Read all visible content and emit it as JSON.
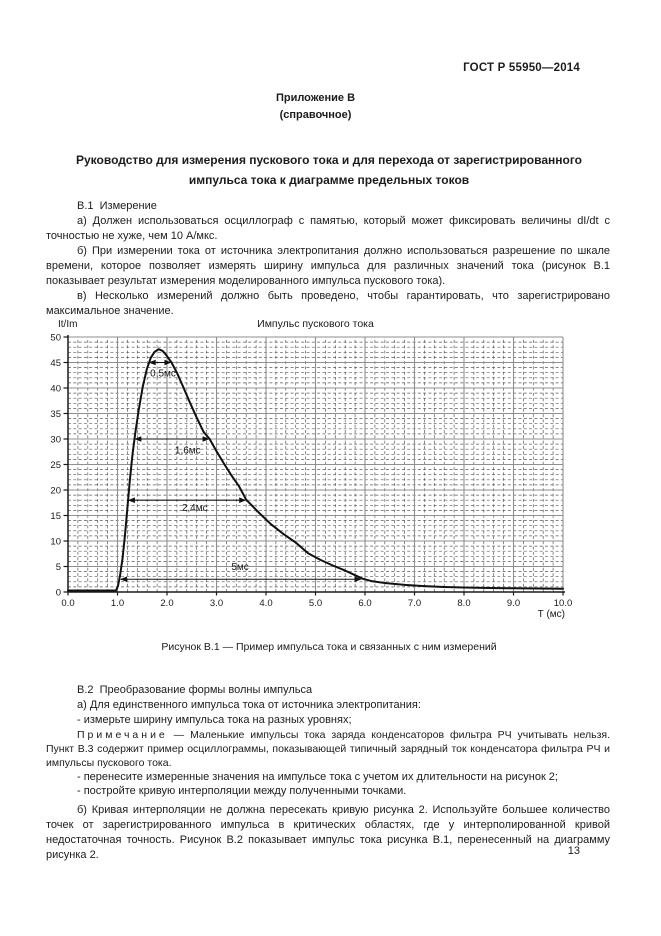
{
  "page": {
    "header": "ГОСТ Р 55950—2014",
    "appendix_label": "Приложение В",
    "appendix_type": "(справочное)",
    "title_lines": [
      "Руководство для измерения пускового тока и для перехода от зарегистрированного",
      "импульса тока к диаграмме предельных токов"
    ],
    "page_number": "13"
  },
  "section_b1": {
    "heading": "В.1  Измерение",
    "para_a": "а) Должен использоваться осциллограф с памятью, который может фиксировать величины dI/dt с точностью не хуже, чем 10 А/мкс.",
    "para_b": "б) При измерении тока от источника электропитания должно использоваться разрешение по шкале времени, которое позволяет измерять ширину импульса для различных значений тока (рисунок В.1 показывает результат измерения моделированного импульса пускового тока).",
    "para_v": "в) Несколько измерений должно быть проведено, чтобы гарантировать, что зарегистрировано максимальное значение."
  },
  "figure": {
    "caption": "Рисунок В.1 — Пример импульса тока и связанных с ним измерений"
  },
  "section_b2": {
    "heading": "В.2  Преобразование формы волны импульса",
    "para_a": "а) Для единственного импульса тока от источника электропитания:",
    "item_1": "- измерьте ширину импульса тока на разных уровнях;",
    "note_label": "Примечание",
    "note_text": " — Маленькие импульсы тока заряда конденсаторов фильтра РЧ учитывать нельзя. Пункт В.3 содержит пример осциллограммы, показывающей типичный зарядный ток конденсатора фильтра РЧ и импульсы пускового тока.",
    "item_2": "- перенесите измеренные значения на импульсе тока с учетом их длительности на рисунок 2;",
    "item_3": "- постройте кривую интерполяции между полученными точками.",
    "para_b": "б) Кривая интерполяции не должна пересекать кривую рисунка 2. Используйте большее количество точек от зарегистрированного импульса в критических областях, где у интерполированной кривой недостаточная точность. Рисунок В.2 показывает импульс тока рисунка В.1, перенесенный на диаграмму рисунка 2."
  },
  "chart_data": {
    "type": "line",
    "title": "Импульс пускового тока",
    "ylabel": "It/Im",
    "xlabel": "Т (мс)",
    "xlim": [
      0,
      10
    ],
    "ylim": [
      0,
      50
    ],
    "x_tick_labels": [
      "0.0",
      "1.0",
      "2.0",
      "3.0",
      "4.0",
      "5.0",
      "6.0",
      "7.0",
      "8.0",
      "9.0",
      "10.0"
    ],
    "y_ticks": [
      0,
      5,
      10,
      15,
      20,
      25,
      30,
      35,
      40,
      45,
      50
    ],
    "grid": {
      "minor_x_step": 0.2,
      "minor_y_step": 1,
      "major_x_step": 1,
      "major_y_step": 5,
      "minor_style": "dashed",
      "major_style": "solid"
    },
    "curve": [
      [
        0,
        0.3
      ],
      [
        0.6,
        0.3
      ],
      [
        0.97,
        0.3
      ],
      [
        1.01,
        1.2
      ],
      [
        1.05,
        3.2
      ],
      [
        1.1,
        6.5
      ],
      [
        1.15,
        11
      ],
      [
        1.2,
        16.5
      ],
      [
        1.25,
        22
      ],
      [
        1.3,
        26.8
      ],
      [
        1.36,
        31.2
      ],
      [
        1.43,
        35.8
      ],
      [
        1.51,
        40.2
      ],
      [
        1.59,
        43.6
      ],
      [
        1.67,
        45.9
      ],
      [
        1.75,
        47.1
      ],
      [
        1.83,
        47.6
      ],
      [
        1.91,
        47.3
      ],
      [
        1.99,
        46.4
      ],
      [
        2.09,
        45
      ],
      [
        2.2,
        43
      ],
      [
        2.32,
        40.4
      ],
      [
        2.46,
        37.2
      ],
      [
        2.6,
        34.2
      ],
      [
        2.74,
        31.4
      ],
      [
        2.86,
        30
      ],
      [
        3.0,
        27.6
      ],
      [
        3.15,
        25.2
      ],
      [
        3.3,
        22.9
      ],
      [
        3.45,
        20.8
      ],
      [
        3.6,
        18.1
      ],
      [
        3.85,
        15.6
      ],
      [
        4.1,
        13.3
      ],
      [
        4.35,
        11.4
      ],
      [
        4.6,
        9.7
      ],
      [
        4.85,
        7.6
      ],
      [
        5.1,
        6.3
      ],
      [
        5.35,
        5.2
      ],
      [
        5.6,
        4.2
      ],
      [
        5.8,
        3.3
      ],
      [
        5.95,
        2.6
      ],
      [
        6.15,
        2.1
      ],
      [
        6.45,
        1.7
      ],
      [
        6.8,
        1.4
      ],
      [
        7.2,
        1.15
      ],
      [
        7.6,
        0.98
      ],
      [
        8.0,
        0.88
      ],
      [
        8.5,
        0.78
      ],
      [
        9.0,
        0.72
      ],
      [
        9.5,
        0.68
      ],
      [
        10,
        0.65
      ]
    ],
    "measurements": [
      {
        "label": "0,5мс",
        "level": 45,
        "x1": 1.63,
        "x2": 2.09,
        "label_x": 1.66,
        "label_y": 42.3
      },
      {
        "label": "1,6мс",
        "level": 30,
        "x1": 1.34,
        "x2": 2.86,
        "label_x": 2.16,
        "label_y": 27.2
      },
      {
        "label": "2,4мс",
        "level": 18,
        "x1": 1.21,
        "x2": 3.6,
        "label_x": 2.3,
        "label_y": 15.9
      },
      {
        "label": "5мс",
        "level": 2.5,
        "x1": 1.05,
        "x2": 5.93,
        "label_x": 3.3,
        "label_y": 4.3
      }
    ],
    "colors": {
      "curve": "#111111",
      "axis": "#1a1a1a",
      "major_grid": "#8f8f8f",
      "minor_grid": "#5a5a5a",
      "text": "#1a1a1a"
    }
  }
}
